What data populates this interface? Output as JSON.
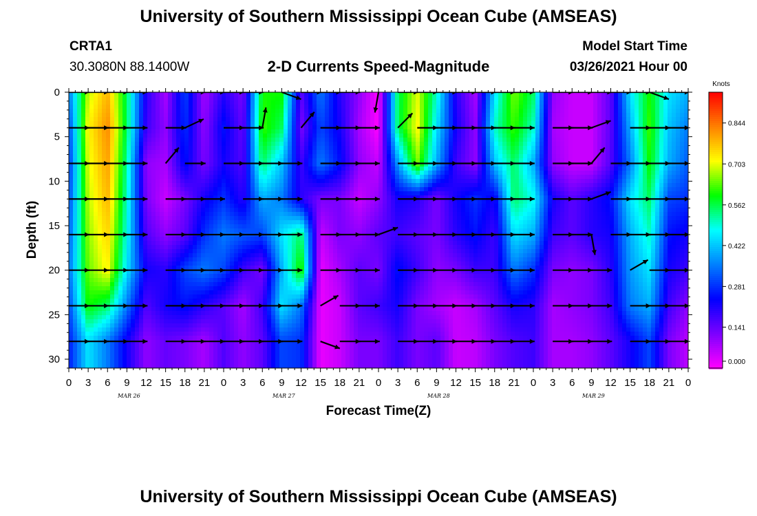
{
  "page": {
    "top_title": "University of Southern Mississippi Ocean Cube (AMSEAS)",
    "bottom_title": "University of Southern Mississippi Ocean Cube (AMSEAS)",
    "station_id": "CRTA1",
    "station_coords": "30.3080N  88.1400W",
    "plot_title": "2-D Currents Speed-Magnitude",
    "model_start_label": "Model Start Time",
    "model_start_value": "03/26/2021 Hour 00"
  },
  "chart_data": {
    "type": "heatmap",
    "title": "2-D Currents Speed-Magnitude",
    "xlabel": "Forecast Time(Z)",
    "ylabel": "Depth (ft)",
    "x_tick_labels": [
      "0",
      "3",
      "6",
      "9",
      "12",
      "15",
      "18",
      "21",
      "0",
      "3",
      "6",
      "9",
      "12",
      "15",
      "18",
      "21",
      "0",
      "3",
      "6",
      "9",
      "12",
      "15",
      "18",
      "21",
      "0",
      "3",
      "6",
      "9",
      "12",
      "15",
      "18",
      "21",
      "0"
    ],
    "date_labels": [
      {
        "label": "MAR 26",
        "hour": 9
      },
      {
        "label": "MAR 27",
        "hour": 33
      },
      {
        "label": "MAR 28",
        "hour": 57
      },
      {
        "label": "MAR 29",
        "hour": 81
      }
    ],
    "xlim": [
      0,
      96
    ],
    "y_ticks": [
      0,
      5,
      10,
      15,
      20,
      25,
      30
    ],
    "ylim": [
      31,
      0
    ],
    "colorbar": {
      "unit": "Knots",
      "ticks": [
        "0.000",
        "0.141",
        "0.281",
        "0.422",
        "0.562",
        "0.703",
        "0.844"
      ],
      "tick_values": [
        0.0,
        0.141,
        0.281,
        0.422,
        0.562,
        0.703,
        0.844
      ],
      "range": [
        0.0,
        0.95
      ],
      "colors": [
        "#ff00ff",
        "#7b00ff",
        "#0000ff",
        "#0080ff",
        "#00ffff",
        "#00ff00",
        "#ffff00",
        "#ff8000",
        "#ff0000"
      ]
    },
    "depths": [
      0,
      4,
      8,
      12,
      16,
      20,
      24,
      28
    ],
    "hours": [
      0,
      3,
      6,
      9,
      12,
      15,
      18,
      21,
      24,
      27,
      30,
      33,
      36,
      39,
      42,
      45,
      48,
      51,
      54,
      57,
      60,
      63,
      66,
      69,
      72,
      75,
      78,
      81,
      84,
      87,
      90,
      93,
      96
    ],
    "speed": [
      [
        0.35,
        0.68,
        0.78,
        0.55,
        0.2,
        0.08,
        0.3,
        0.08,
        0.2,
        0.12,
        0.6,
        0.6,
        0.15,
        0.35,
        0.2,
        0.1,
        0.0,
        0.55,
        0.7,
        0.5,
        0.2,
        0.08,
        0.45,
        0.65,
        0.55,
        0.1,
        0.05,
        0.05,
        0.15,
        0.45,
        0.6,
        0.45,
        0.4
      ],
      [
        0.3,
        0.72,
        0.82,
        0.55,
        0.18,
        0.1,
        0.28,
        0.1,
        0.25,
        0.14,
        0.62,
        0.55,
        0.12,
        0.3,
        0.22,
        0.08,
        0.0,
        0.55,
        0.72,
        0.45,
        0.22,
        0.1,
        0.5,
        0.62,
        0.5,
        0.08,
        0.05,
        0.05,
        0.15,
        0.4,
        0.62,
        0.42,
        0.35
      ],
      [
        0.28,
        0.7,
        0.8,
        0.52,
        0.1,
        0.08,
        0.25,
        0.12,
        0.22,
        0.16,
        0.55,
        0.42,
        0.18,
        0.35,
        0.25,
        0.1,
        0.05,
        0.38,
        0.65,
        0.4,
        0.18,
        0.1,
        0.42,
        0.55,
        0.4,
        0.1,
        0.05,
        0.05,
        0.16,
        0.35,
        0.6,
        0.4,
        0.32
      ],
      [
        0.3,
        0.68,
        0.78,
        0.5,
        0.12,
        0.05,
        0.12,
        0.22,
        0.28,
        0.2,
        0.4,
        0.35,
        0.2,
        0.12,
        0.12,
        0.05,
        0.1,
        0.22,
        0.2,
        0.12,
        0.22,
        0.28,
        0.22,
        0.55,
        0.48,
        0.22,
        0.15,
        0.2,
        0.25,
        0.45,
        0.55,
        0.3,
        0.28
      ],
      [
        0.32,
        0.66,
        0.75,
        0.48,
        0.16,
        0.1,
        0.15,
        0.28,
        0.35,
        0.32,
        0.3,
        0.45,
        0.55,
        0.05,
        0.12,
        0.1,
        0.15,
        0.18,
        0.15,
        0.12,
        0.2,
        0.25,
        0.18,
        0.45,
        0.4,
        0.18,
        0.15,
        0.2,
        0.22,
        0.4,
        0.5,
        0.25,
        0.22
      ],
      [
        0.34,
        0.64,
        0.72,
        0.45,
        0.22,
        0.2,
        0.3,
        0.35,
        0.3,
        0.18,
        0.12,
        0.4,
        0.62,
        0.02,
        0.08,
        0.15,
        0.12,
        0.25,
        0.18,
        0.1,
        0.12,
        0.18,
        0.18,
        0.35,
        0.28,
        0.12,
        0.1,
        0.12,
        0.2,
        0.38,
        0.45,
        0.22,
        0.18
      ],
      [
        0.3,
        0.6,
        0.55,
        0.35,
        0.16,
        0.22,
        0.25,
        0.2,
        0.15,
        0.08,
        0.18,
        0.45,
        0.35,
        0.02,
        0.05,
        0.15,
        0.18,
        0.22,
        0.12,
        0.08,
        0.05,
        0.08,
        0.15,
        0.22,
        0.2,
        0.08,
        0.1,
        0.12,
        0.18,
        0.35,
        0.4,
        0.18,
        0.1
      ],
      [
        0.26,
        0.45,
        0.35,
        0.22,
        0.1,
        0.14,
        0.12,
        0.08,
        0.16,
        0.1,
        0.15,
        0.3,
        0.28,
        0.02,
        0.05,
        0.12,
        0.12,
        0.18,
        0.12,
        0.15,
        0.05,
        0.06,
        0.12,
        0.16,
        0.18,
        0.08,
        0.08,
        0.1,
        0.15,
        0.22,
        0.3,
        0.12,
        0.06
      ]
    ],
    "vector_depths": [
      0,
      4,
      8,
      12,
      16,
      20,
      24,
      28
    ],
    "vector_hours": [
      0,
      3,
      6,
      9,
      12,
      15,
      18,
      21,
      24,
      27,
      30,
      33,
      36,
      39,
      42,
      45,
      48,
      51,
      54,
      57,
      60,
      63,
      66,
      69,
      72,
      75,
      78,
      81,
      84,
      87,
      90,
      93,
      96
    ],
    "vector_angles_deg": [
      [
        0,
        0,
        0,
        0,
        null,
        null,
        0,
        0,
        0,
        0,
        null,
        20,
        0,
        0,
        0,
        null,
        100,
        0,
        0,
        0,
        0,
        0,
        0,
        0,
        null,
        0,
        0,
        0,
        0,
        0,
        20,
        0,
        -20
      ],
      [
        0,
        0,
        0,
        0,
        null,
        0,
        -25,
        null,
        0,
        0,
        -80,
        null,
        -50,
        0,
        0,
        0,
        null,
        -45,
        0,
        0,
        0,
        0,
        0,
        0,
        null,
        0,
        0,
        -20,
        null,
        0,
        0,
        0,
        null
      ],
      [
        0,
        0,
        0,
        0,
        null,
        -50,
        0,
        null,
        0,
        0,
        0,
        0,
        null,
        0,
        0,
        0,
        null,
        0,
        0,
        0,
        0,
        0,
        0,
        0,
        null,
        0,
        0,
        -50,
        0,
        0,
        0,
        0,
        null
      ],
      [
        0,
        0,
        0,
        0,
        null,
        0,
        0,
        0,
        null,
        0,
        0,
        0,
        null,
        0,
        0,
        0,
        null,
        0,
        0,
        0,
        0,
        0,
        0,
        0,
        null,
        0,
        0,
        -20,
        0,
        0,
        0,
        0,
        null
      ],
      [
        0,
        0,
        0,
        0,
        null,
        0,
        0,
        0,
        0,
        0,
        0,
        0,
        null,
        0,
        0,
        0,
        -20,
        0,
        0,
        0,
        0,
        0,
        0,
        0,
        null,
        0,
        0,
        80,
        0,
        0,
        0,
        0,
        null
      ],
      [
        0,
        0,
        0,
        0,
        null,
        0,
        0,
        0,
        0,
        0,
        0,
        0,
        null,
        0,
        0,
        0,
        null,
        0,
        0,
        0,
        0,
        0,
        0,
        0,
        null,
        0,
        0,
        0,
        null,
        -30,
        0,
        0,
        null
      ],
      [
        0,
        0,
        0,
        0,
        null,
        0,
        0,
        0,
        0,
        0,
        0,
        0,
        null,
        -30,
        0,
        0,
        null,
        0,
        0,
        0,
        0,
        0,
        0,
        0,
        null,
        0,
        0,
        0,
        null,
        0,
        0,
        0,
        null
      ],
      [
        0,
        0,
        0,
        0,
        null,
        0,
        0,
        0,
        0,
        0,
        0,
        0,
        null,
        20,
        0,
        0,
        null,
        0,
        0,
        0,
        0,
        0,
        0,
        0,
        null,
        0,
        0,
        0,
        null,
        0,
        0,
        0,
        null
      ]
    ]
  }
}
